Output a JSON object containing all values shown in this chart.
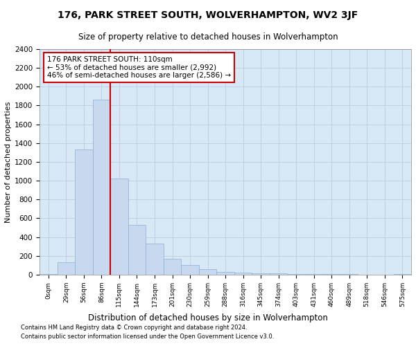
{
  "title": "176, PARK STREET SOUTH, WOLVERHAMPTON, WV2 3JF",
  "subtitle": "Size of property relative to detached houses in Wolverhampton",
  "xlabel": "Distribution of detached houses by size in Wolverhampton",
  "ylabel": "Number of detached properties",
  "footer_line1": "Contains HM Land Registry data © Crown copyright and database right 2024.",
  "footer_line2": "Contains public sector information licensed under the Open Government Licence v3.0.",
  "bar_color": "#c8d8ee",
  "bar_edge_color": "#8aaed4",
  "grid_color": "#b8cde0",
  "background_color": "#d8e8f4",
  "subject_line_color": "#cc0000",
  "annotation_box_color": "#cc0000",
  "bin_labels": [
    "0sqm",
    "29sqm",
    "56sqm",
    "86sqm",
    "115sqm",
    "144sqm",
    "173sqm",
    "201sqm",
    "230sqm",
    "259sqm",
    "288sqm",
    "316sqm",
    "345sqm",
    "374sqm",
    "403sqm",
    "431sqm",
    "460sqm",
    "489sqm",
    "518sqm",
    "546sqm",
    "575sqm"
  ],
  "bar_heights": [
    10,
    130,
    1330,
    1860,
    1020,
    530,
    330,
    170,
    100,
    55,
    30,
    20,
    15,
    12,
    8,
    5,
    10,
    5,
    3,
    3,
    10
  ],
  "ylim": [
    0,
    2400
  ],
  "yticks": [
    0,
    200,
    400,
    600,
    800,
    1000,
    1200,
    1400,
    1600,
    1800,
    2000,
    2200,
    2400
  ],
  "subject_bin_index": 4,
  "annotation_text_line1": "176 PARK STREET SOUTH: 110sqm",
  "annotation_text_line2": "← 53% of detached houses are smaller (2,992)",
  "annotation_text_line3": "46% of semi-detached houses are larger (2,586) →"
}
